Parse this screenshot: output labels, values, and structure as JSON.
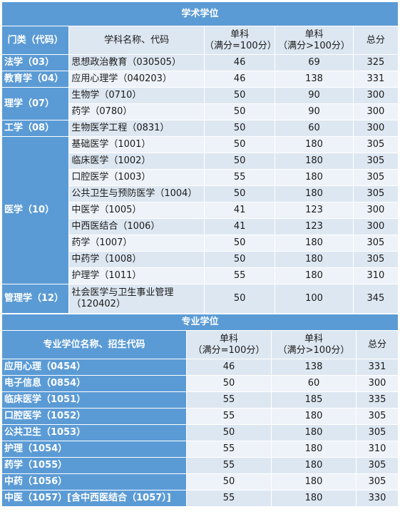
{
  "academic": {
    "title": "学术学位",
    "headers": {
      "category": "门类（代码）",
      "subject": "学科名称、代码",
      "single100": "单科\n（满分=100分）",
      "singleOver100": "单科\n（满分>100分）",
      "total": "总分"
    },
    "groups": [
      {
        "category": "法学（03）",
        "rows": [
          {
            "subject": "思想政治教育（030505）",
            "s1": "46",
            "s2": "69",
            "total": "325"
          }
        ]
      },
      {
        "category": "教育学（04）",
        "rows": [
          {
            "subject": "应用心理学（040203）",
            "s1": "46",
            "s2": "138",
            "total": "331"
          }
        ]
      },
      {
        "category": "理学（07）",
        "rows": [
          {
            "subject": "生物学（0710）",
            "s1": "50",
            "s2": "90",
            "total": "300"
          },
          {
            "subject": "药学（0780）",
            "s1": "50",
            "s2": "90",
            "total": "300"
          }
        ]
      },
      {
        "category": "工学（08）",
        "rows": [
          {
            "subject": "生物医学工程（0831）",
            "s1": "50",
            "s2": "60",
            "total": "300"
          }
        ]
      },
      {
        "category": "医学（10）",
        "rows": [
          {
            "subject": "基础医学（1001）",
            "s1": "50",
            "s2": "180",
            "total": "305"
          },
          {
            "subject": "临床医学（1002）",
            "s1": "50",
            "s2": "180",
            "total": "305"
          },
          {
            "subject": "口腔医学（1003）",
            "s1": "55",
            "s2": "180",
            "total": "305"
          },
          {
            "subject": "公共卫生与预防医学（1004）",
            "s1": "50",
            "s2": "180",
            "total": "305"
          },
          {
            "subject": "中医学（1005）",
            "s1": "41",
            "s2": "123",
            "total": "300"
          },
          {
            "subject": "中西医结合（1006）",
            "s1": "41",
            "s2": "123",
            "total": "300"
          },
          {
            "subject": "药学（1007）",
            "s1": "50",
            "s2": "180",
            "total": "305"
          },
          {
            "subject": "中药学（1008）",
            "s1": "50",
            "s2": "180",
            "total": "305"
          },
          {
            "subject": "护理学（1011）",
            "s1": "55",
            "s2": "180",
            "total": "310"
          }
        ]
      },
      {
        "category": "管理学（12）",
        "rows": [
          {
            "subject": "社会医学与卫生事业管理\n（120402）",
            "s1": "50",
            "s2": "100",
            "total": "345"
          }
        ]
      }
    ]
  },
  "professional": {
    "title": "专业学位",
    "headers": {
      "name": "专业学位名称、招生代码",
      "single100": "单科\n（满分=100分）",
      "singleOver100": "单科\n（满分>100分）",
      "total": "总分"
    },
    "rows": [
      {
        "name": "应用心理（0454）",
        "s1": "46",
        "s2": "138",
        "total": "331"
      },
      {
        "name": "电子信息（0854）",
        "s1": "50",
        "s2": "60",
        "total": "300"
      },
      {
        "name": "临床医学（1051）",
        "s1": "55",
        "s2": "185",
        "total": "335"
      },
      {
        "name": "口腔医学（1052）",
        "s1": "55",
        "s2": "180",
        "total": "305"
      },
      {
        "name": "公共卫生（1053）",
        "s1": "50",
        "s2": "180",
        "total": "305"
      },
      {
        "name": "护理（1054）",
        "s1": "55",
        "s2": "180",
        "total": "310"
      },
      {
        "name": "药学（1055）",
        "s1": "55",
        "s2": "180",
        "total": "305"
      },
      {
        "name": "中药（1056）",
        "s1": "50",
        "s2": "180",
        "total": "305"
      },
      {
        "name": "中医（1057）[含中西医结合（1057）]",
        "s1": "55",
        "s2": "180",
        "total": "330"
      }
    ]
  }
}
